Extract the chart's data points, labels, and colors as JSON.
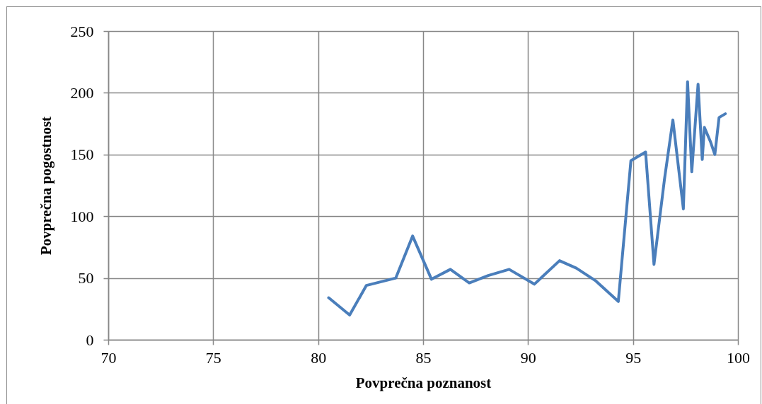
{
  "chart_data": {
    "type": "line",
    "xlabel": "Povprečna poznanost",
    "ylabel": "Povprečna pogostnost",
    "x": [
      80.5,
      81.5,
      82.3,
      83.7,
      84.5,
      85.4,
      86.3,
      87.2,
      88.1,
      89.1,
      90.3,
      91.5,
      92.3,
      93.2,
      94.3,
      94.9,
      95.6,
      96.0,
      96.5,
      96.9,
      97.4,
      97.6,
      97.8,
      98.1,
      98.3,
      98.4,
      98.7,
      98.9,
      99.1,
      99.4
    ],
    "series": [
      {
        "color": "#4a7ebb",
        "values": [
          34,
          20,
          44,
          50,
          84,
          49,
          57,
          46,
          52,
          57,
          45,
          64,
          58,
          48,
          31,
          145,
          152,
          61,
          130,
          178,
          106,
          209,
          136,
          207,
          146,
          172,
          160,
          150,
          180,
          183
        ]
      }
    ],
    "xlim": [
      70,
      100
    ],
    "xticks": [
      70,
      75,
      80,
      85,
      90,
      95,
      100
    ],
    "ylim": [
      0,
      250
    ],
    "yticks": [
      0,
      50,
      100,
      150,
      200,
      250
    ],
    "grid": true,
    "line_style": "solid"
  }
}
